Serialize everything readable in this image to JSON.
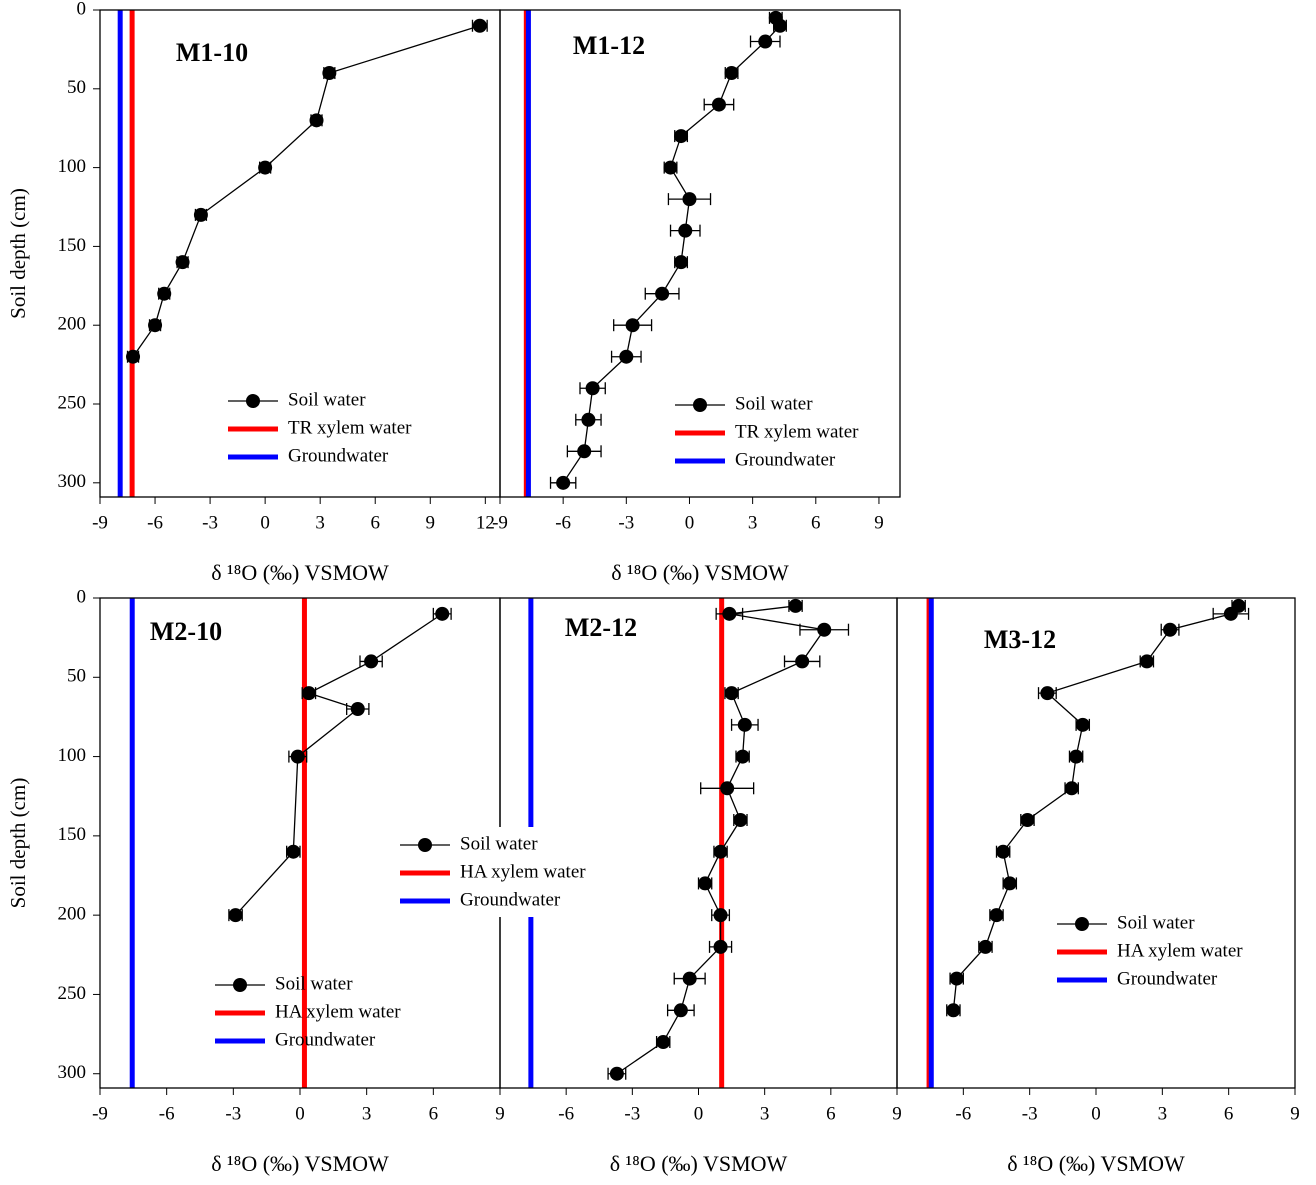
{
  "chart_data": [
    {
      "type": "line",
      "title": "M1-10",
      "xlabel": "δ ¹⁸O (‰) VSMOW",
      "ylabel": "Soil depth (cm)",
      "xlim": [
        -9,
        12.8
      ],
      "xticks": [
        -9,
        -6,
        -3,
        0,
        3,
        6,
        9,
        12
      ],
      "ylim": [
        0,
        309
      ],
      "yticks": [
        0,
        50,
        100,
        150,
        200,
        250,
        300
      ],
      "invert_y": true,
      "series": [
        {
          "name": "Soil water",
          "color": "#000000",
          "x": [
            11.7,
            3.5,
            2.8,
            0,
            -3.5,
            -4.5,
            -5.5,
            -6,
            -7.2
          ],
          "values": [
            10,
            40,
            70,
            100,
            130,
            160,
            180,
            200,
            220
          ],
          "xerr": [
            0.4,
            0.3,
            0.3,
            0.3,
            0.3,
            0.3,
            0.3,
            0.3,
            0.3
          ]
        },
        {
          "name": "TR xylem water",
          "color": "#ff0000",
          "x": [
            -7.25
          ]
        },
        {
          "name": "Groundwater",
          "color": "#0000ff",
          "x": [
            -7.9
          ]
        }
      ]
    },
    {
      "type": "line",
      "title": "M1-12",
      "xlabel": "δ ¹⁸O (‰) VSMOW",
      "xlim": [
        -9,
        10
      ],
      "xticks": [
        -9,
        -6,
        -3,
        0,
        3,
        6,
        9
      ],
      "ylim": [
        0,
        309
      ],
      "invert_y": true,
      "series": [
        {
          "name": "Soil water",
          "color": "#000000",
          "x": [
            4.1,
            4.3,
            3.6,
            2.0,
            1.4,
            -0.4,
            -0.9,
            0,
            -0.2,
            -0.4,
            -1.3,
            -2.7,
            -3.0,
            -4.6,
            -4.8,
            -5.0,
            -6.0
          ],
          "values": [
            5,
            10,
            20,
            40,
            60,
            80,
            100,
            120,
            140,
            160,
            180,
            200,
            220,
            240,
            260,
            280,
            300
          ],
          "xerr": [
            0.3,
            0.3,
            0.7,
            0.3,
            0.7,
            0.3,
            0.3,
            1.0,
            0.7,
            0.3,
            0.8,
            0.9,
            0.7,
            0.6,
            0.6,
            0.8,
            0.6
          ]
        },
        {
          "name": "TR xylem water",
          "color": "#ff0000",
          "x": [
            -7.75
          ]
        },
        {
          "name": "Groundwater",
          "color": "#0000ff",
          "x": [
            -7.65
          ]
        }
      ]
    },
    {
      "type": "line",
      "title": "M2-10",
      "xlabel": "δ ¹⁸O (‰) VSMOW",
      "ylabel": "Soil depth (cm)",
      "xlim": [
        -9,
        9
      ],
      "xticks": [
        -9,
        -6,
        -3,
        0,
        3,
        6,
        9
      ],
      "ylim": [
        0,
        309
      ],
      "yticks": [
        0,
        50,
        100,
        150,
        200,
        250,
        300
      ],
      "invert_y": true,
      "series": [
        {
          "name": "Soil water",
          "color": "#000000",
          "x": [
            6.4,
            3.2,
            0.4,
            2.6,
            -0.1,
            -0.3,
            -2.9
          ],
          "values": [
            10,
            40,
            60,
            70,
            100,
            160,
            200
          ],
          "xerr": [
            0.4,
            0.5,
            0.3,
            0.5,
            0.4,
            0.3,
            0.3
          ]
        },
        {
          "name": "HA xylem water",
          "color": "#ff0000",
          "x": [
            0.2
          ]
        },
        {
          "name": "Groundwater",
          "color": "#0000ff",
          "x": [
            -7.55
          ]
        }
      ]
    },
    {
      "type": "line",
      "title": "M2-12",
      "xlabel": "δ ¹⁸O (‰) VSMOW",
      "xlim": [
        -9,
        9
      ],
      "xticks": [
        -6,
        -3,
        0,
        3,
        6,
        9
      ],
      "ylim": [
        0,
        309
      ],
      "invert_y": true,
      "series": [
        {
          "name": "Soil water",
          "color": "#000000",
          "x": [
            4.4,
            1.4,
            5.7,
            4.7,
            1.5,
            2.1,
            2.0,
            1.3,
            1.9,
            1.0,
            0.3,
            1.0,
            1.0,
            -0.4,
            -0.8,
            -1.6,
            -3.7
          ],
          "values": [
            5,
            10,
            20,
            40,
            60,
            80,
            100,
            120,
            140,
            160,
            180,
            200,
            220,
            240,
            260,
            280,
            300
          ],
          "xerr": [
            0.3,
            0.6,
            1.1,
            0.8,
            0.3,
            0.6,
            0.3,
            1.2,
            0.3,
            0.3,
            0.3,
            0.4,
            0.5,
            0.7,
            0.6,
            0.3,
            0.4
          ]
        },
        {
          "name": "HA xylem water",
          "color": "#ff0000",
          "x": [
            1.05
          ]
        },
        {
          "name": "Groundwater",
          "color": "#0000ff",
          "x": [
            -7.6
          ]
        }
      ]
    },
    {
      "type": "line",
      "title": "M3-12",
      "xlabel": "δ ¹⁸O (‰) VSMOW",
      "xlim": [
        -9,
        9
      ],
      "xticks": [
        -6,
        -3,
        0,
        3,
        6,
        9
      ],
      "ylim": [
        0,
        309
      ],
      "invert_y": true,
      "series": [
        {
          "name": "Soil water",
          "color": "#000000",
          "x": [
            6.45,
            6.1,
            3.35,
            2.3,
            -2.2,
            -0.6,
            -0.9,
            -1.1,
            -3.1,
            -4.2,
            -3.9,
            -4.5,
            -5.0,
            -6.3,
            -6.45
          ],
          "values": [
            5,
            10,
            20,
            40,
            60,
            80,
            100,
            120,
            140,
            160,
            180,
            200,
            220,
            240,
            260
          ],
          "xerr": [
            0.3,
            0.8,
            0.4,
            0.3,
            0.4,
            0.3,
            0.3,
            0.3,
            0.3,
            0.3,
            0.3,
            0.3,
            0.3,
            0.3,
            0.3
          ]
        },
        {
          "name": "HA xylem water",
          "color": "#ff0000",
          "x": [
            -7.55
          ]
        },
        {
          "name": "Groundwater",
          "color": "#0000ff",
          "x": [
            -7.45
          ]
        }
      ]
    }
  ]
}
